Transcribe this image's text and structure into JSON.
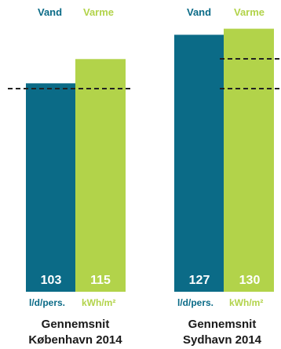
{
  "colors": {
    "vand": "#0b6b87",
    "varme": "#b2d34a",
    "ref_line": "#222222"
  },
  "chart_data": {
    "type": "bar",
    "series": [
      {
        "name": "Vand",
        "unit": "l/d/pers.",
        "values": [
          103,
          127
        ]
      },
      {
        "name": "Varme",
        "unit": "kWh/m²",
        "values": [
          115,
          130
        ]
      }
    ],
    "groups": [
      {
        "line1": "Gennemsnit",
        "line2": "København 2014"
      },
      {
        "line1": "Gennemsnit",
        "line2": "Sydhavn 2014"
      }
    ]
  }
}
